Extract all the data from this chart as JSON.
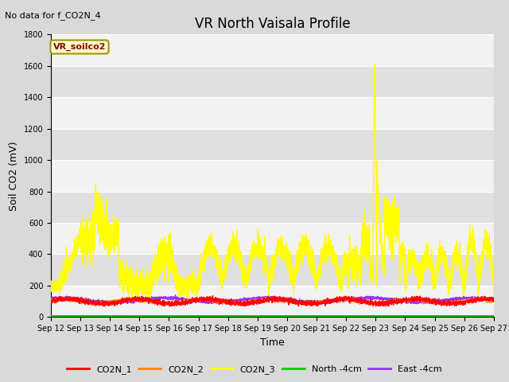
{
  "title": "VR North Vaisala Profile",
  "top_left_note": "No data for f_CO2N_4",
  "ylabel": "Soil CO2 (mV)",
  "xlabel": "Time",
  "legend_label": "VR_soilco2",
  "ylim": [
    0,
    1800
  ],
  "x_start": 12,
  "x_end": 27,
  "x_ticks": [
    12,
    13,
    14,
    15,
    16,
    17,
    18,
    19,
    20,
    21,
    22,
    23,
    24,
    25,
    26,
    27
  ],
  "x_tick_labels": [
    "Sep 12",
    "Sep 13",
    "Sep 14",
    "Sep 15",
    "Sep 16",
    "Sep 17",
    "Sep 18",
    "Sep 19",
    "Sep 20",
    "Sep 21",
    "Sep 22",
    "Sep 23",
    "Sep 24",
    "Sep 25",
    "Sep 26",
    "Sep 27"
  ],
  "series": {
    "CO2N_1": {
      "color": "#ff0000",
      "lw": 1.0
    },
    "CO2N_2": {
      "color": "#ff8800",
      "lw": 1.0
    },
    "CO2N_3": {
      "color": "#ffff00",
      "lw": 1.0
    },
    "North_4cm": {
      "color": "#00cc00",
      "lw": 1.5
    },
    "East_4cm": {
      "color": "#9933ff",
      "lw": 1.0
    }
  },
  "bg_color": "#d9d9d9",
  "plot_bg_light": "#f2f2f2",
  "plot_bg_dark": "#e0e0e0",
  "grid_color": "#ffffff",
  "title_fontsize": 12,
  "axis_label_fontsize": 9,
  "tick_fontsize": 7,
  "legend_fontsize": 8
}
